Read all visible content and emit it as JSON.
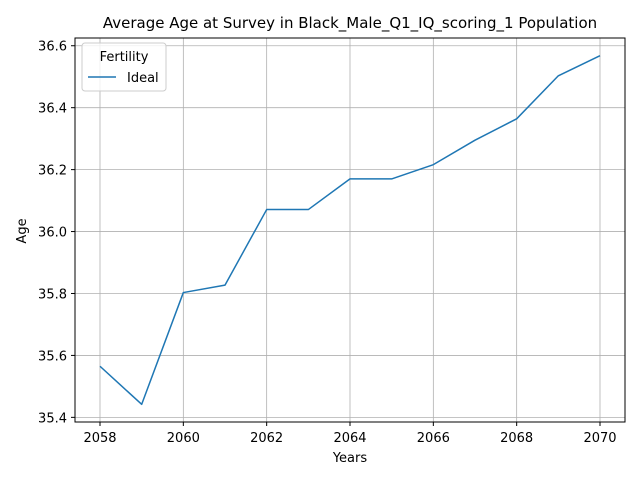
{
  "chart_data": {
    "type": "line",
    "title": "Average Age at Survey in Black_Male_Q1_IQ_scoring_1 Population",
    "xlabel": "Years",
    "ylabel": "Age",
    "x": [
      2058,
      2059,
      2060,
      2061,
      2062,
      2063,
      2064,
      2065,
      2066,
      2067,
      2068,
      2069,
      2070
    ],
    "series": [
      {
        "name": "Ideal",
        "color": "#1f77b4",
        "values": [
          35.565,
          35.442,
          35.803,
          35.827,
          36.071,
          36.071,
          36.17,
          36.17,
          36.216,
          36.295,
          36.364,
          36.503,
          36.568
        ]
      }
    ],
    "xlim": [
      2057.4,
      2070.6
    ],
    "ylim": [
      35.385,
      36.625
    ],
    "xticks": [
      2058,
      2060,
      2062,
      2064,
      2066,
      2068,
      2070
    ],
    "yticks": [
      35.4,
      35.6,
      35.8,
      36.0,
      36.2,
      36.4,
      36.6
    ],
    "ytick_labels": [
      "35.4",
      "35.6",
      "35.8",
      "36.0",
      "36.2",
      "36.4",
      "36.6"
    ],
    "grid": true,
    "legend": {
      "title": "Fertility",
      "placement": "upper-left"
    }
  }
}
